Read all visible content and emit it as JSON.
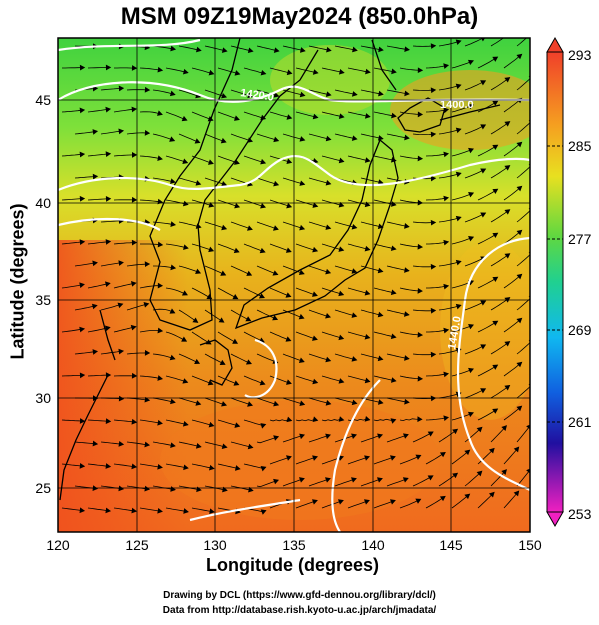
{
  "title": "MSM 09Z19May2024 (850.0hPa)",
  "x_axis": {
    "label": "Longitude (degrees)",
    "ticks": [
      "120",
      "125",
      "130",
      "135",
      "140",
      "145",
      "150"
    ]
  },
  "y_axis": {
    "label": "Latitude  (degrees)",
    "ticks": [
      "25",
      "30",
      "35",
      "40",
      "45"
    ]
  },
  "colorbar": {
    "ticks": [
      "293",
      "285",
      "277",
      "269",
      "261",
      "253"
    ]
  },
  "contour_labels": [
    "1420.0",
    "1400.0",
    "1440.0"
  ],
  "footer": {
    "line1": "Drawing by DCL (https://www.gfd-dennou.org/library/dcl/)",
    "line2": "Data from http://database.rish.kyoto-u.ac.jp/arch/jmadata/"
  },
  "colors": {
    "warm": "#f05a1e",
    "mid": "#e8a018",
    "cool": "#4cd84c",
    "contour": "#ffffff"
  }
}
